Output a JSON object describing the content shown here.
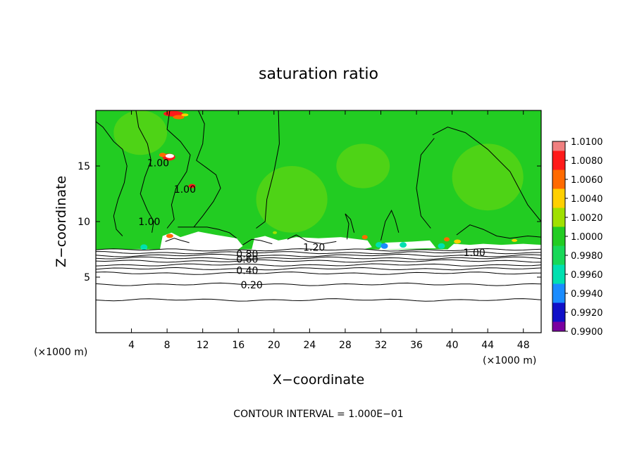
{
  "chart_data": {
    "type": "heatmap",
    "title": "saturation ratio",
    "xlabel": "X−coordinate",
    "ylabel": "Z−coordinate",
    "x_unit": "(×1000 m)",
    "x_unit_right": "(×1000 m)",
    "footer": "CONTOUR INTERVAL = 1.000E−01",
    "xlim": [
      0,
      50
    ],
    "ylim": [
      0,
      20
    ],
    "x_ticks": [
      4,
      8,
      12,
      16,
      20,
      24,
      28,
      32,
      36,
      40,
      44,
      48
    ],
    "y_ticks": [
      5,
      10,
      15
    ],
    "colorbar": {
      "levels": [
        "1.0100",
        "1.0080",
        "1.0060",
        "1.0040",
        "1.0020",
        "1.0000",
        "0.9980",
        "0.9960",
        "0.9940",
        "0.9920",
        "0.9900"
      ],
      "colors": [
        "#f08080",
        "#ff1a1a",
        "#ff6a00",
        "#ffd000",
        "#a0e000",
        "#22cc22",
        "#18d858",
        "#00e0b0",
        "#1a8cff",
        "#1010c8",
        "#7a00a0"
      ]
    },
    "contour_labels": [
      {
        "text": "1.00",
        "x": 7.0,
        "y": 15.3
      },
      {
        "text": "1.00",
        "x": 10.0,
        "y": 12.9
      },
      {
        "text": "1.00",
        "x": 6.0,
        "y": 10.0
      },
      {
        "text": "1.20",
        "x": 24.5,
        "y": 7.7
      },
      {
        "text": "1.00",
        "x": 42.5,
        "y": 7.2
      },
      {
        "text": "0.80",
        "x": 17.0,
        "y": 7.1
      },
      {
        "text": "0.60",
        "x": 17.0,
        "y": 6.6
      },
      {
        "text": "0.40",
        "x": 17.0,
        "y": 5.6
      },
      {
        "text": "0.20",
        "x": 17.5,
        "y": 4.3
      }
    ],
    "isoline_levels": [
      7.45,
      7.2,
      6.95,
      6.7,
      6.45,
      6.1,
      5.75,
      5.35,
      4.35,
      2.95
    ]
  }
}
